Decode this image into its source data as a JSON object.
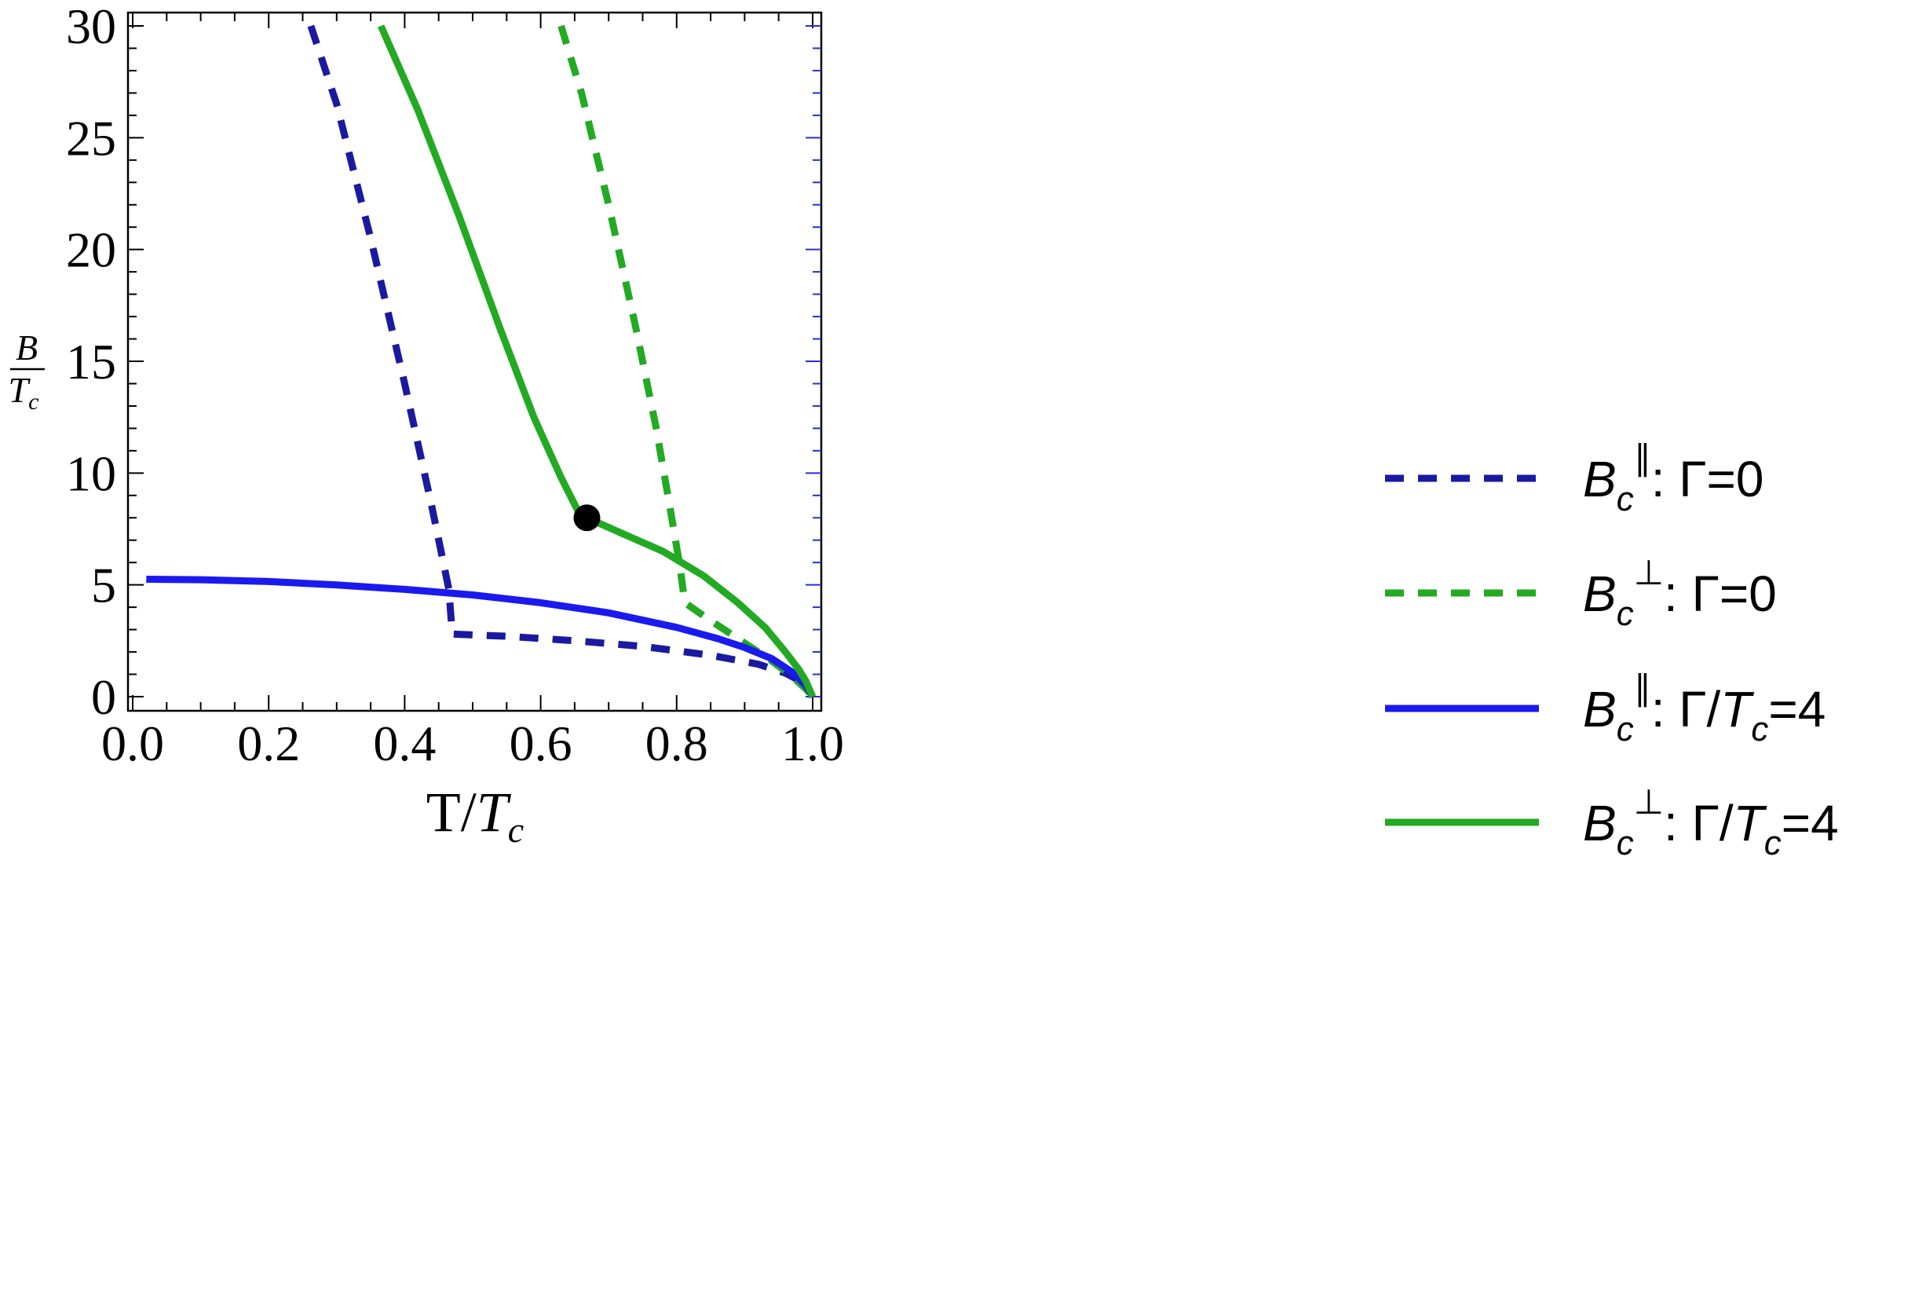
{
  "chart_data": {
    "type": "line",
    "title": "",
    "xlabel": {
      "main": "T/",
      "var": "T",
      "sub": "c"
    },
    "ylabel": {
      "num": "B",
      "den": "T",
      "sub": "c"
    },
    "xlim": [
      0.0,
      1.0
    ],
    "ylim": [
      0,
      30
    ],
    "x_ticks": [
      "0.0",
      "0.2",
      "0.4",
      "0.6",
      "0.8",
      "1.0"
    ],
    "y_ticks": [
      "0",
      "5",
      "10",
      "15",
      "20",
      "25",
      "30"
    ],
    "grid": false,
    "legend_position": "right",
    "series": [
      {
        "name": "Bc∥: Γ=0",
        "legend": {
          "base": "B",
          "sub": "c",
          "sup": "∥",
          "rest": ": Γ=0"
        },
        "color": "#1a1aa0",
        "style": "dashed",
        "x": [
          0.262,
          0.3,
          0.35,
          0.4,
          0.44,
          0.465,
          0.47,
          0.47,
          0.55,
          0.65,
          0.75,
          0.85,
          0.92,
          0.96,
          0.985,
          0.995,
          1.0
        ],
        "y": [
          30.0,
          26.5,
          20.5,
          14.0,
          8.5,
          4.8,
          2.8,
          2.8,
          2.7,
          2.5,
          2.25,
          1.85,
          1.45,
          1.05,
          0.65,
          0.3,
          0.0
        ]
      },
      {
        "name": "Bc⊥: Γ=0",
        "legend": {
          "base": "B",
          "sub": "c",
          "sup": "⊥",
          "rest": ": Γ=0"
        },
        "color": "#22aa22",
        "style": "dashed",
        "x": [
          0.63,
          0.66,
          0.7,
          0.74,
          0.77,
          0.79,
          0.805,
          0.812,
          0.812,
          0.85,
          0.9,
          0.94,
          0.97,
          0.99,
          1.0
        ],
        "y": [
          30.0,
          27.0,
          22.0,
          16.5,
          12.0,
          8.5,
          5.8,
          4.2,
          4.2,
          3.4,
          2.4,
          1.6,
          0.9,
          0.35,
          0.0
        ]
      },
      {
        "name": "Bc∥: Γ/Tc=4",
        "legend": {
          "base": "B",
          "sub": "c",
          "sup": "∥",
          "rest": ": Γ/",
          "rest_var": "T",
          "rest_sub": "c",
          "rest_end": "=4"
        },
        "color": "#1a1aee",
        "style": "solid",
        "x": [
          0.02,
          0.1,
          0.2,
          0.3,
          0.4,
          0.5,
          0.6,
          0.7,
          0.8,
          0.86,
          0.9,
          0.94,
          0.97,
          0.99,
          1.0
        ],
        "y": [
          5.25,
          5.23,
          5.15,
          5.0,
          4.8,
          4.55,
          4.2,
          3.75,
          3.1,
          2.6,
          2.2,
          1.7,
          1.1,
          0.5,
          0.0
        ]
      },
      {
        "name": "Bc⊥: Γ/Tc=4",
        "legend": {
          "base": "B",
          "sub": "c",
          "sup": "⊥",
          "rest": ":  Γ/",
          "rest_var": "T",
          "rest_sub": "c",
          "rest_end": "=4"
        },
        "color": "#22aa22",
        "style": "solid",
        "x": [
          0.365,
          0.42,
          0.48,
          0.54,
          0.59,
          0.63,
          0.655,
          0.668,
          0.668,
          0.72,
          0.78,
          0.84,
          0.89,
          0.93,
          0.96,
          0.98,
          0.99,
          1.0
        ],
        "y": [
          30.0,
          26.2,
          21.5,
          16.5,
          12.5,
          9.8,
          8.3,
          8.0,
          8.0,
          7.3,
          6.5,
          5.4,
          4.2,
          3.1,
          2.0,
          1.2,
          0.7,
          0.0
        ]
      }
    ],
    "markers": [
      {
        "x": 0.668,
        "y": 8.0,
        "color": "#000000"
      }
    ]
  }
}
